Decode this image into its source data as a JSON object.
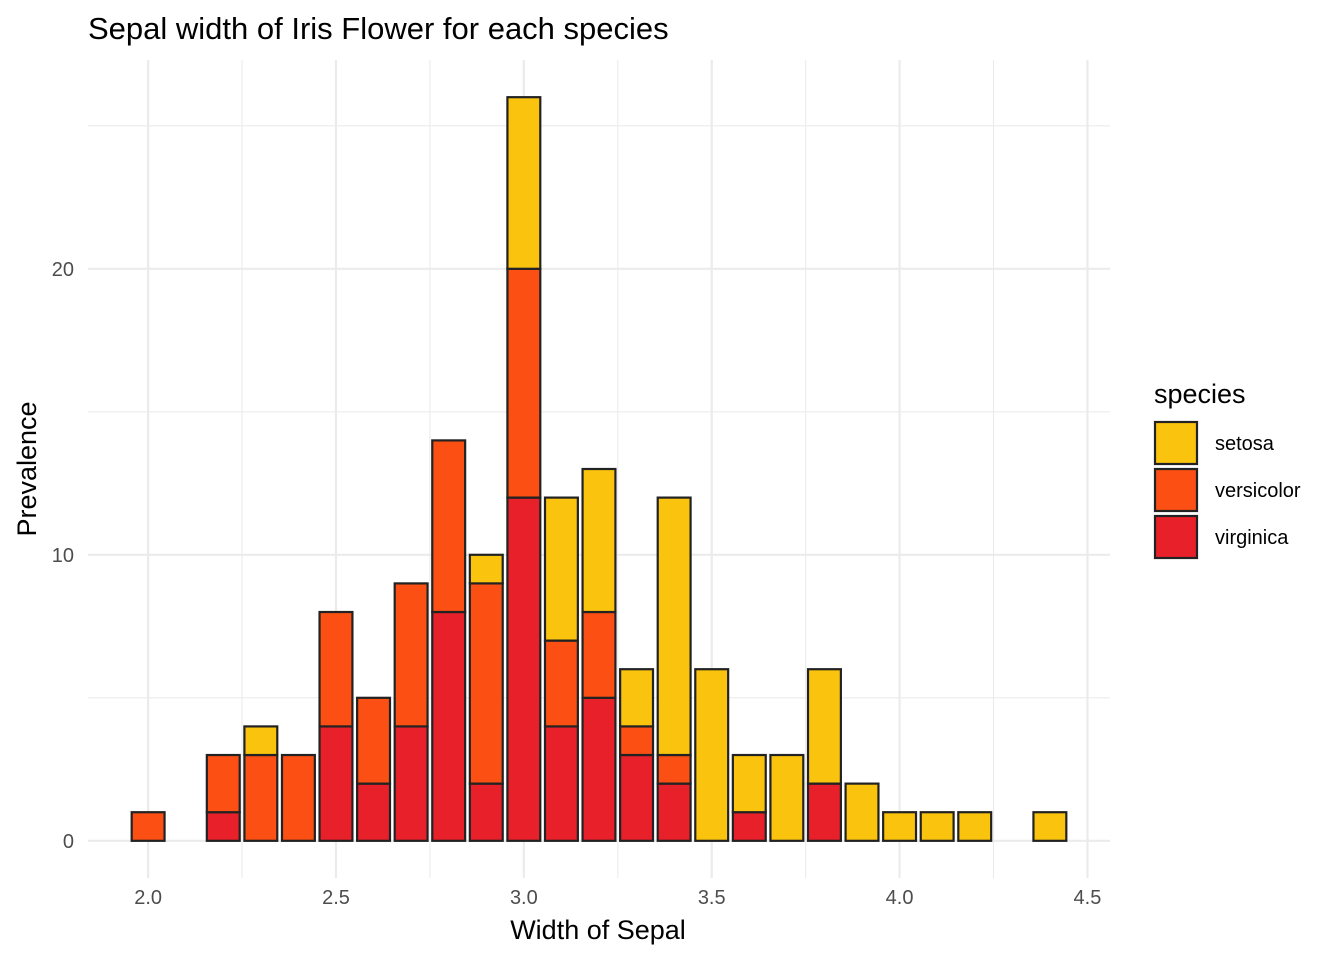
{
  "chart_data": {
    "type": "bar",
    "stacked": true,
    "title": "Sepal width of Iris Flower for each species",
    "xlabel": "Width of Sepal",
    "ylabel": "Prevalence",
    "xlim": [
      1.84,
      4.56
    ],
    "ylim": [
      -1.3,
      27.3
    ],
    "bin_width": 0.0875,
    "x_ticks": [
      2.0,
      2.5,
      3.0,
      3.5,
      4.0,
      4.5
    ],
    "x_tick_labels": [
      "2.0",
      "2.5",
      "3.0",
      "3.5",
      "4.0",
      "4.5"
    ],
    "y_ticks": [
      0,
      10,
      20
    ],
    "y_tick_labels": [
      "0",
      "10",
      "20"
    ],
    "grid": true,
    "legend": {
      "title": "species",
      "position": "right"
    },
    "x": [
      2.0,
      2.2,
      2.3,
      2.4,
      2.5,
      2.6,
      2.7,
      2.8,
      2.9,
      3.0,
      3.1,
      3.2,
      3.3,
      3.4,
      3.5,
      3.6,
      3.7,
      3.8,
      3.9,
      4.0,
      4.1,
      4.2,
      4.4
    ],
    "series": [
      {
        "name": "setosa",
        "color": "#F9C30E",
        "values": [
          0,
          0,
          1,
          0,
          0,
          0,
          0,
          0,
          1,
          6,
          5,
          5,
          2,
          9,
          6,
          2,
          3,
          4,
          2,
          1,
          1,
          1,
          1
        ]
      },
      {
        "name": "versicolor",
        "color": "#FB4F14",
        "values": [
          1,
          2,
          3,
          3,
          4,
          3,
          5,
          6,
          7,
          8,
          3,
          3,
          1,
          1,
          0,
          0,
          0,
          0,
          0,
          0,
          0,
          0,
          0
        ]
      },
      {
        "name": "virginica",
        "color": "#E8202A",
        "values": [
          0,
          1,
          0,
          0,
          4,
          2,
          4,
          8,
          2,
          12,
          4,
          5,
          3,
          2,
          0,
          1,
          0,
          2,
          0,
          0,
          0,
          0,
          0
        ]
      }
    ]
  }
}
